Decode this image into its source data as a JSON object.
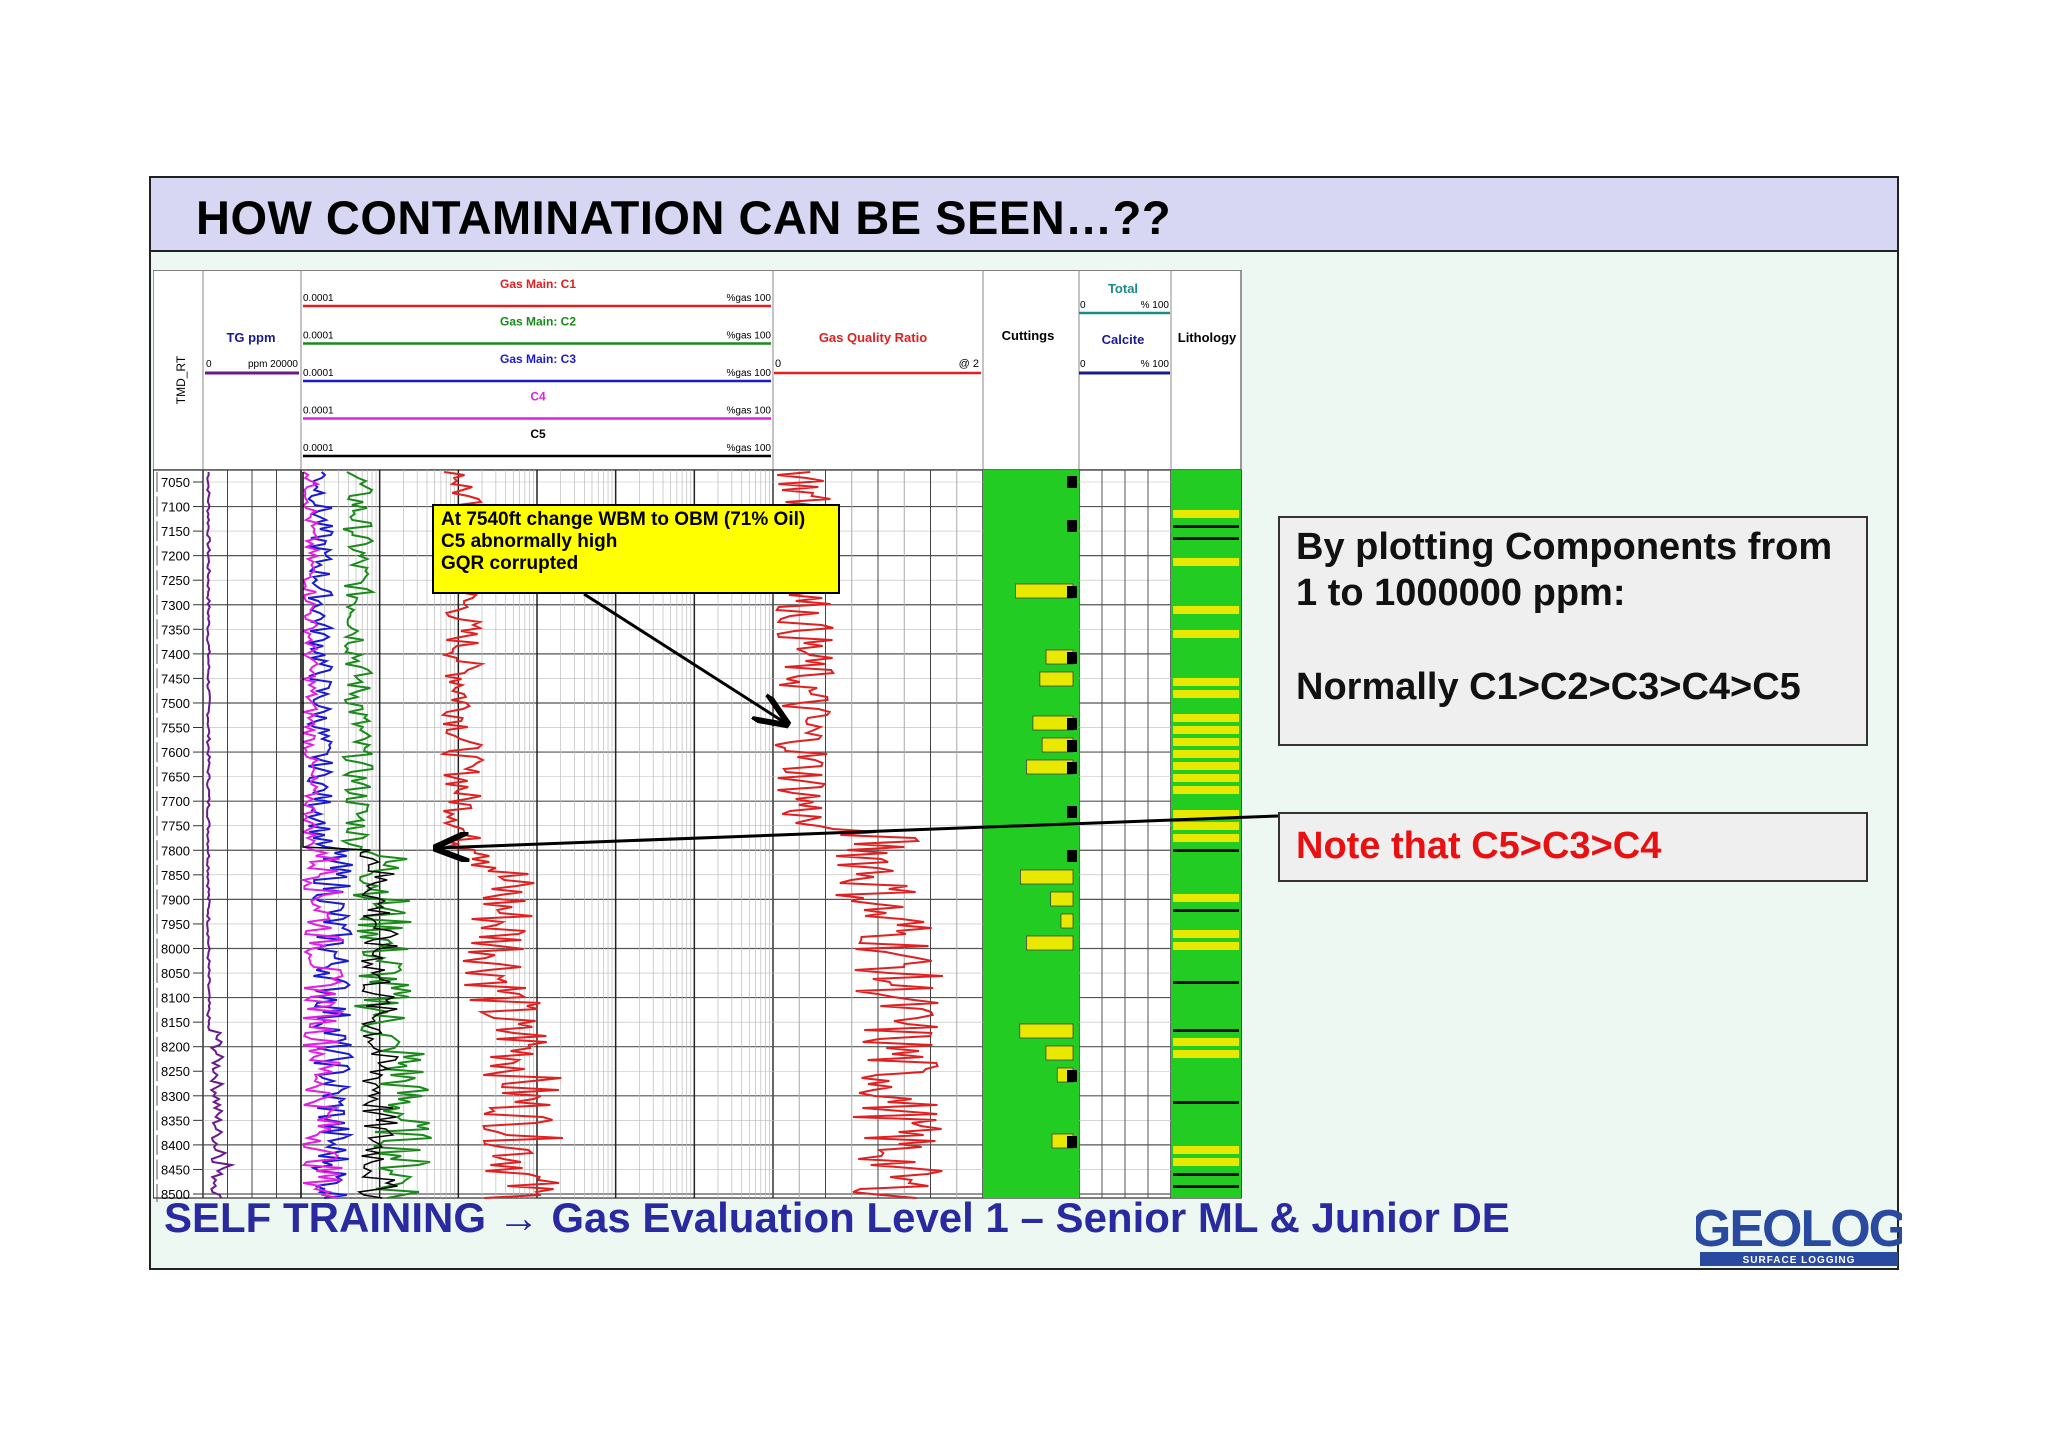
{
  "slide": {
    "title": "HOW CONTAMINATION CAN BE SEEN…??",
    "footer": "SELF TRAINING → Gas Evaluation Level 1 – Senior ML & Junior DE",
    "logo": {
      "text": "GEOLOG",
      "subtext": "SURFACE LOGGING"
    }
  },
  "log": {
    "headers": {
      "depth": "TMD_RT",
      "tg": {
        "name": "TG ppm",
        "min": "0",
        "max": "ppm 20000"
      },
      "gas_tracks": [
        {
          "name": "Gas Main: C1",
          "min": "0.0001",
          "max": "%gas 100",
          "color": "#e02020"
        },
        {
          "name": "Gas Main: C2",
          "min": "0.0001",
          "max": "%gas 100",
          "color": "#1a8a1a"
        },
        {
          "name": "Gas Main: C3",
          "min": "0.0001",
          "max": "%gas 100",
          "color": "#1a1ad0"
        },
        {
          "name": "C4",
          "min": "0.0001",
          "max": "%gas 100",
          "color": "#e020e0"
        },
        {
          "name": "C5",
          "min": "0.0001",
          "max": "%gas 100",
          "color": "#000000"
        }
      ],
      "gqr": {
        "name": "Gas Quality Ratio",
        "min": "0",
        "max": "@ 2"
      },
      "cuttings": "Cuttings",
      "total": {
        "name": "Total",
        "min": "0",
        "max": "% 100"
      },
      "calcite": {
        "name": "Calcite",
        "min": "0",
        "max": "% 100"
      },
      "lithology": "Lithology"
    },
    "depths": [
      "7050",
      "7100",
      "7150",
      "7200",
      "7250",
      "7300",
      "7350",
      "7400",
      "7450",
      "7500",
      "7550",
      "7600",
      "7650",
      "7700",
      "7750",
      "7800",
      "7850",
      "7900",
      "7950",
      "8000",
      "8050",
      "8100",
      "8150",
      "8200",
      "8250",
      "8300",
      "8350",
      "8400",
      "8450",
      "8500"
    ],
    "callout": {
      "line1": "At 7540ft change WBM to OBM (71% Oil)",
      "line2": "C5 abnormally high",
      "line3": "GQR corrupted"
    }
  },
  "notes": {
    "box1_line1": "By plotting Components from",
    "box1_line2": "1 to 1000000 ppm:",
    "box1_line3": "Normally C1>C2>C3>C4>C5",
    "box2": "Note that C5>C3>C4"
  },
  "colors": {
    "title_bar": "#d7d7f4",
    "slide_bg": "#eef8f2",
    "footer_text": "#2a2aa0",
    "note_red": "#e81010",
    "cuttings_green": "#22cc22",
    "lithology_yellow": "#e8e800"
  }
}
